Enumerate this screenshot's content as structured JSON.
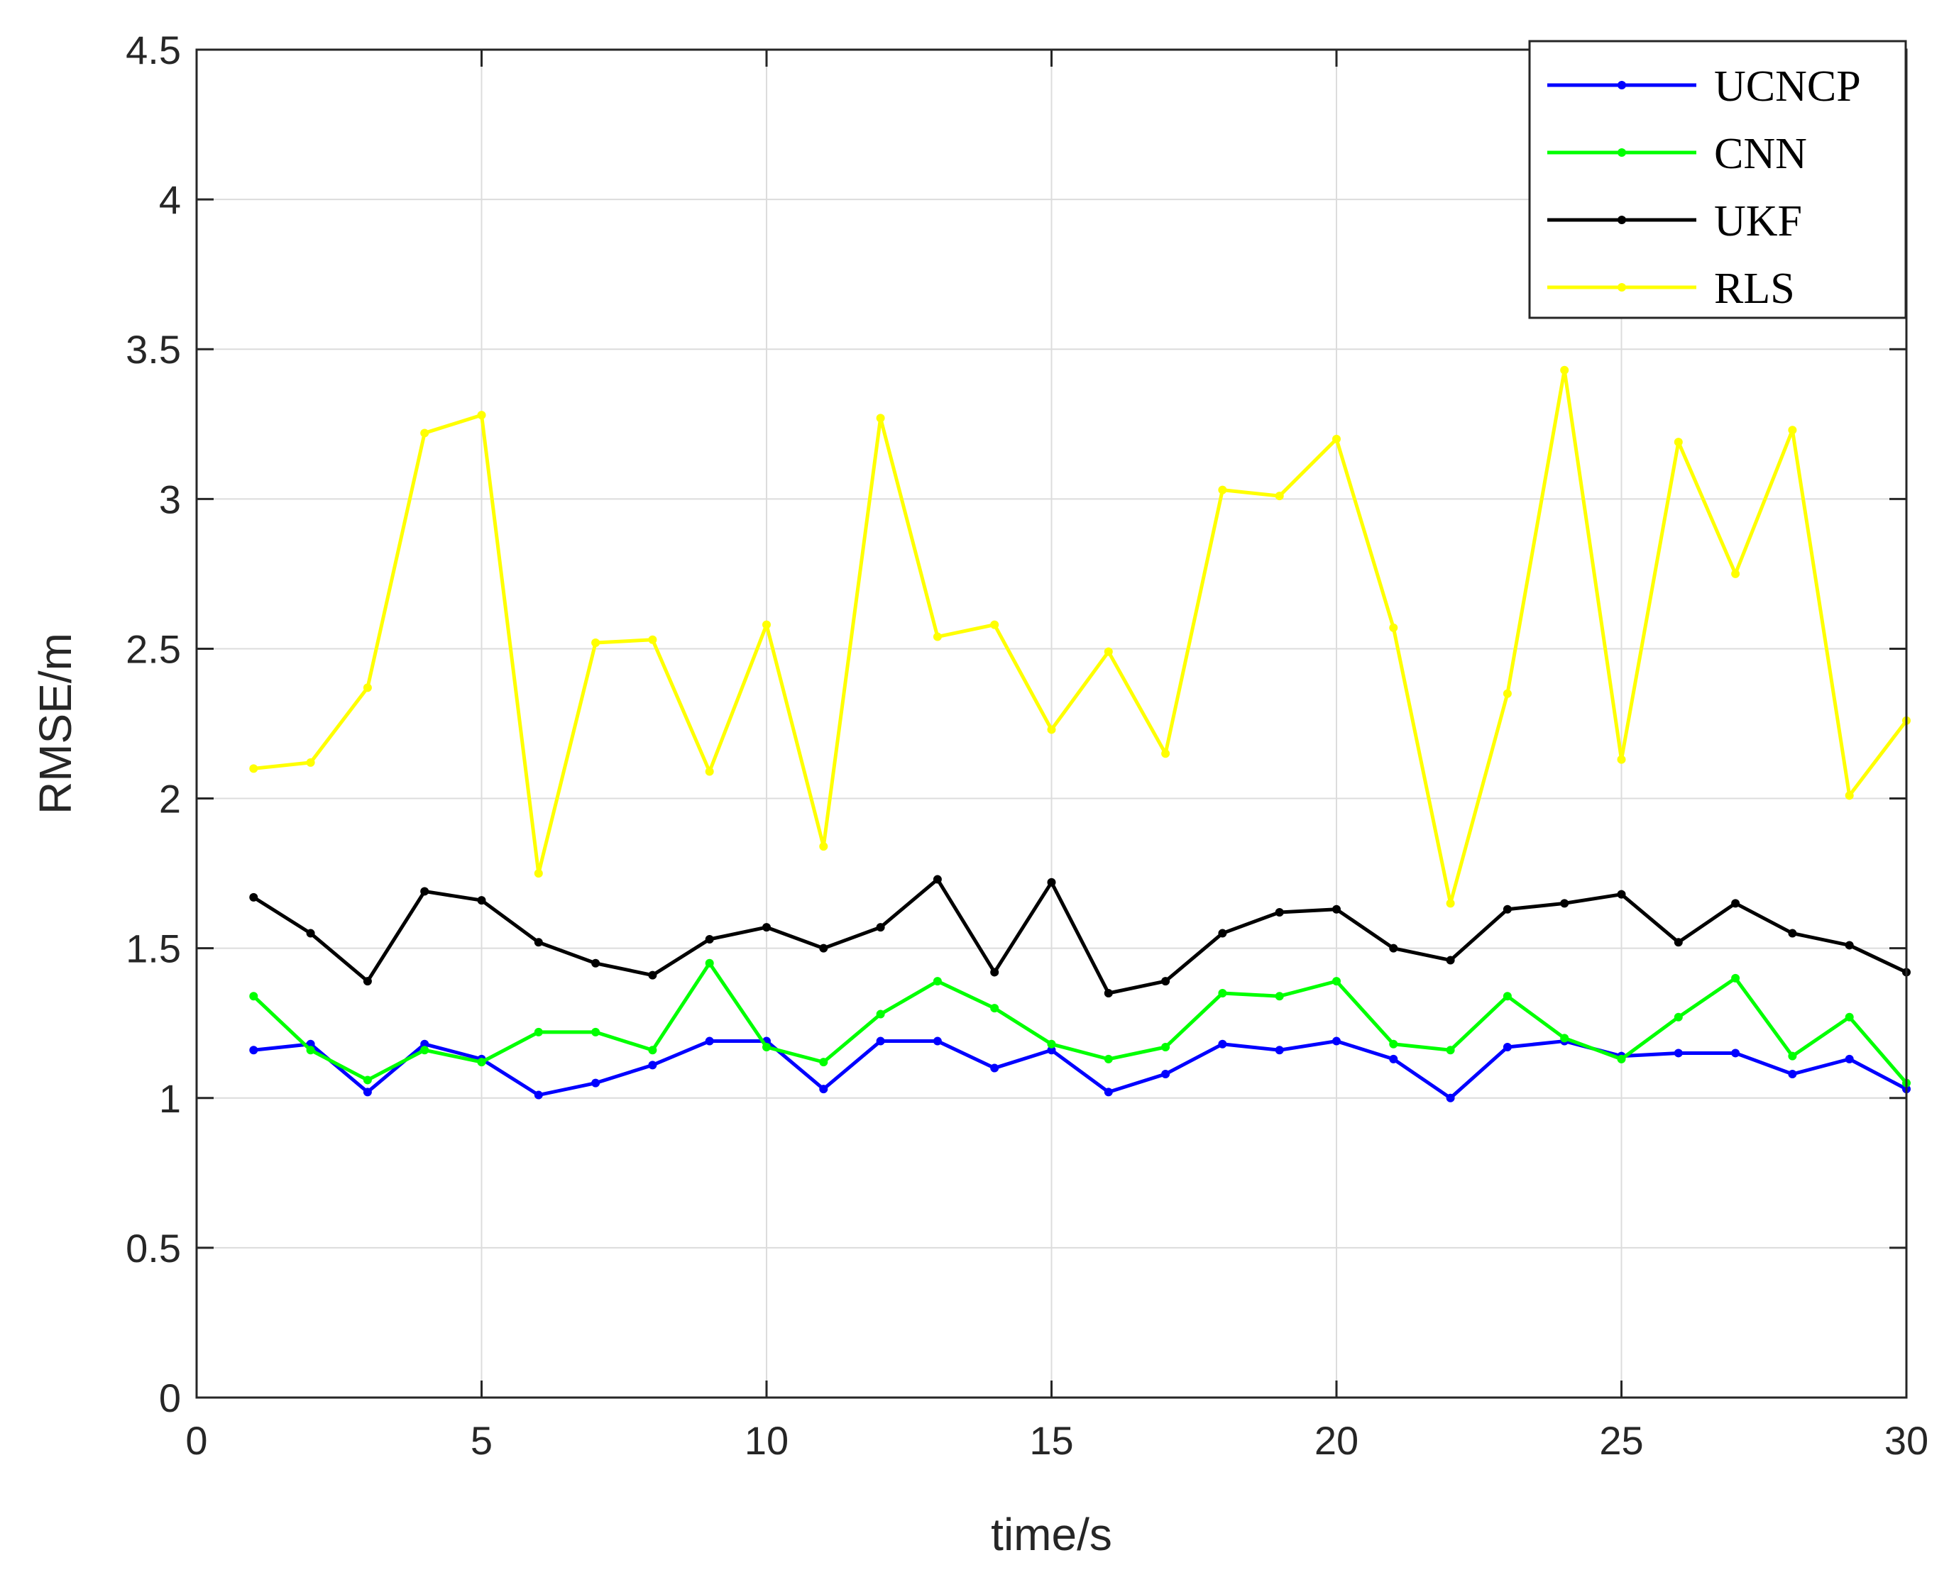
{
  "chart_data": {
    "type": "line",
    "title": "",
    "xlabel": "time/s",
    "ylabel": "RMSE/m",
    "xlim": [
      0,
      30
    ],
    "ylim": [
      0,
      4.5
    ],
    "x_ticks": [
      "0",
      "5",
      "10",
      "15",
      "20",
      "25",
      "30"
    ],
    "y_ticks": [
      "0",
      "0.5",
      "1",
      "1.5",
      "2",
      "2.5",
      "3",
      "3.5",
      "4",
      "4.5"
    ],
    "grid": true,
    "legend_position": "top-right",
    "x": [
      1,
      2,
      3,
      4,
      5,
      6,
      7,
      8,
      9,
      10,
      11,
      12,
      13,
      14,
      15,
      16,
      17,
      18,
      19,
      20,
      21,
      22,
      23,
      24,
      25,
      26,
      27,
      28,
      29,
      30
    ],
    "series": [
      {
        "name": "UCNCP",
        "color": "#0000ff",
        "values": [
          1.16,
          1.18,
          1.02,
          1.18,
          1.13,
          1.01,
          1.05,
          1.11,
          1.19,
          1.19,
          1.03,
          1.19,
          1.19,
          1.1,
          1.16,
          1.02,
          1.08,
          1.18,
          1.16,
          1.19,
          1.13,
          1.0,
          1.17,
          1.19,
          1.14,
          1.15,
          1.15,
          1.08,
          1.13,
          1.03
        ]
      },
      {
        "name": "CNN",
        "color": "#00ff00",
        "values": [
          1.34,
          1.16,
          1.06,
          1.16,
          1.12,
          1.22,
          1.22,
          1.16,
          1.45,
          1.17,
          1.12,
          1.28,
          1.39,
          1.3,
          1.18,
          1.13,
          1.17,
          1.35,
          1.34,
          1.39,
          1.18,
          1.16,
          1.34,
          1.2,
          1.13,
          1.27,
          1.4,
          1.14,
          1.27,
          1.05
        ]
      },
      {
        "name": "UKF",
        "color": "#000000",
        "values": [
          1.67,
          1.55,
          1.39,
          1.69,
          1.66,
          1.52,
          1.45,
          1.41,
          1.53,
          1.57,
          1.5,
          1.57,
          1.73,
          1.42,
          1.72,
          1.35,
          1.39,
          1.55,
          1.62,
          1.63,
          1.5,
          1.46,
          1.63,
          1.65,
          1.68,
          1.52,
          1.65,
          1.55,
          1.51,
          1.42
        ]
      },
      {
        "name": "RLS",
        "color": "#ffff00",
        "values": [
          2.1,
          2.12,
          2.37,
          3.22,
          3.28,
          1.75,
          2.52,
          2.53,
          2.09,
          2.58,
          1.84,
          3.27,
          2.54,
          2.58,
          2.23,
          2.49,
          2.15,
          3.03,
          3.01,
          3.2,
          2.57,
          1.65,
          2.35,
          3.43,
          2.13,
          3.19,
          2.75,
          3.23,
          2.01,
          2.26
        ]
      }
    ]
  }
}
